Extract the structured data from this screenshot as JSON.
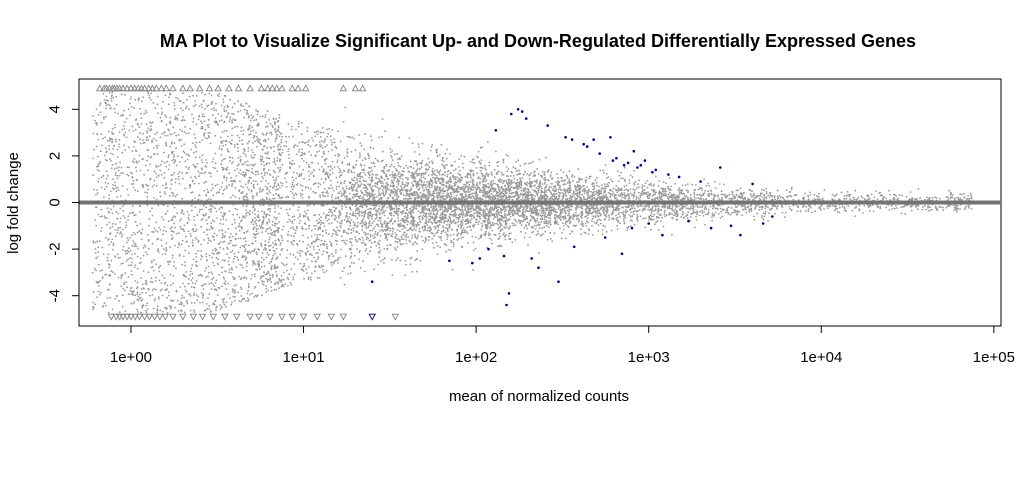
{
  "chart_data": {
    "type": "scatter",
    "title": "MA Plot to Visualize Significant Up- and Down-Regulated Differentially Expressed Genes",
    "xlabel": "mean of normalized counts",
    "ylabel": "log fold change",
    "x_scale": "log10",
    "xlim": [
      0.5,
      110000
    ],
    "ylim": [
      -5.3,
      5.3
    ],
    "x_ticks": [
      1,
      10,
      100,
      1000,
      10000,
      100000
    ],
    "x_tick_labels": [
      "1e+00",
      "1e+01",
      "1e+02",
      "1e+03",
      "1e+04",
      "1e+05"
    ],
    "y_ticks": [
      -4,
      -2,
      0,
      2,
      4
    ],
    "y_tick_labels": [
      "-4",
      "-2",
      "0",
      "2",
      "4"
    ],
    "grid": false,
    "legend": "none",
    "reference_line": {
      "y": 0,
      "color": "#737373"
    },
    "colors": {
      "non_significant": "#999999",
      "significant": "#00007F",
      "clipped_marker": "#808080",
      "zero_line": "#737373",
      "axes": "#000000"
    },
    "clipped_markers": {
      "note": "Points outside ylim are drawn as triangles at the plot edge",
      "up_triangles_at_y": 4.9,
      "down_triangles_at_y": -4.9,
      "up_x": [
        0.66,
        0.7,
        0.72,
        0.75,
        0.78,
        0.8,
        0.83,
        0.86,
        0.9,
        0.95,
        1.0,
        1.05,
        1.1,
        1.15,
        1.2,
        1.27,
        1.33,
        1.4,
        1.5,
        1.6,
        1.75,
        2.0,
        2.2,
        2.5,
        2.85,
        3.2,
        3.7,
        4.2,
        4.9,
        5.7,
        6.2,
        6.6,
        7.0,
        7.5,
        8.6,
        9.3,
        10.3,
        17.0,
        20.0,
        22.0
      ],
      "down_x": [
        0.77,
        0.82,
        0.86,
        0.9,
        0.95,
        1.0,
        1.06,
        1.12,
        1.2,
        1.28,
        1.37,
        1.47,
        1.58,
        1.75,
        2.0,
        2.3,
        2.6,
        3.0,
        3.5,
        4.1,
        4.9,
        5.5,
        6.4,
        7.5,
        8.6,
        10.0,
        12.0,
        14.5,
        17.0,
        25.0,
        34.0
      ]
    },
    "series": [
      {
        "name": "",
        "description_of_visible_pattern": "not-significant genes (grey dots): wide spread at low counts narrowing toward zero at high counts",
        "color": "#999999",
        "generated_from_envelope": true,
        "count": 9000,
        "x_range": [
          0.6,
          75000
        ],
        "spread_by_log10x": [
          [
            -0.22,
            4.9
          ],
          [
            0.0,
            4.8
          ],
          [
            0.5,
            4.7
          ],
          [
            1.0,
            3.4
          ],
          [
            1.5,
            2.6
          ],
          [
            2.0,
            1.9
          ],
          [
            2.5,
            1.4
          ],
          [
            3.0,
            1.05
          ],
          [
            3.5,
            0.75
          ],
          [
            4.0,
            0.55
          ],
          [
            4.5,
            0.45
          ],
          [
            4.9,
            0.4
          ]
        ]
      },
      {
        "name": "",
        "color": "#00007F",
        "description_of_visible_pattern": "significant genes (dark blue dots)",
        "points": [
          [
            25,
            -3.4
          ],
          [
            70,
            -2.5
          ],
          [
            95,
            -2.6
          ],
          [
            105,
            -2.4
          ],
          [
            118,
            -2.0
          ],
          [
            130,
            3.1
          ],
          [
            145,
            -2.3
          ],
          [
            150,
            -4.4
          ],
          [
            155,
            -3.9
          ],
          [
            160,
            3.8
          ],
          [
            175,
            4.0
          ],
          [
            185,
            3.9
          ],
          [
            195,
            3.6
          ],
          [
            210,
            -2.4
          ],
          [
            230,
            -2.8
          ],
          [
            260,
            3.3
          ],
          [
            300,
            -3.4
          ],
          [
            330,
            2.8
          ],
          [
            360,
            2.7
          ],
          [
            370,
            -1.9
          ],
          [
            420,
            2.5
          ],
          [
            440,
            2.4
          ],
          [
            480,
            2.7
          ],
          [
            520,
            2.1
          ],
          [
            560,
            -1.5
          ],
          [
            600,
            2.8
          ],
          [
            620,
            1.8
          ],
          [
            650,
            1.9
          ],
          [
            700,
            -2.2
          ],
          [
            720,
            1.6
          ],
          [
            760,
            1.7
          ],
          [
            800,
            -1.1
          ],
          [
            820,
            2.2
          ],
          [
            860,
            1.5
          ],
          [
            900,
            1.6
          ],
          [
            950,
            1.8
          ],
          [
            1000,
            -0.9
          ],
          [
            1050,
            1.3
          ],
          [
            1100,
            1.4
          ],
          [
            1200,
            -1.4
          ],
          [
            1300,
            1.2
          ],
          [
            1500,
            1.1
          ],
          [
            1700,
            -0.8
          ],
          [
            2000,
            0.9
          ],
          [
            2300,
            -1.1
          ],
          [
            2600,
            1.5
          ],
          [
            3000,
            -1.0
          ],
          [
            3400,
            -1.4
          ],
          [
            4000,
            0.8
          ],
          [
            4600,
            -0.9
          ],
          [
            5200,
            -0.6
          ]
        ]
      }
    ]
  }
}
